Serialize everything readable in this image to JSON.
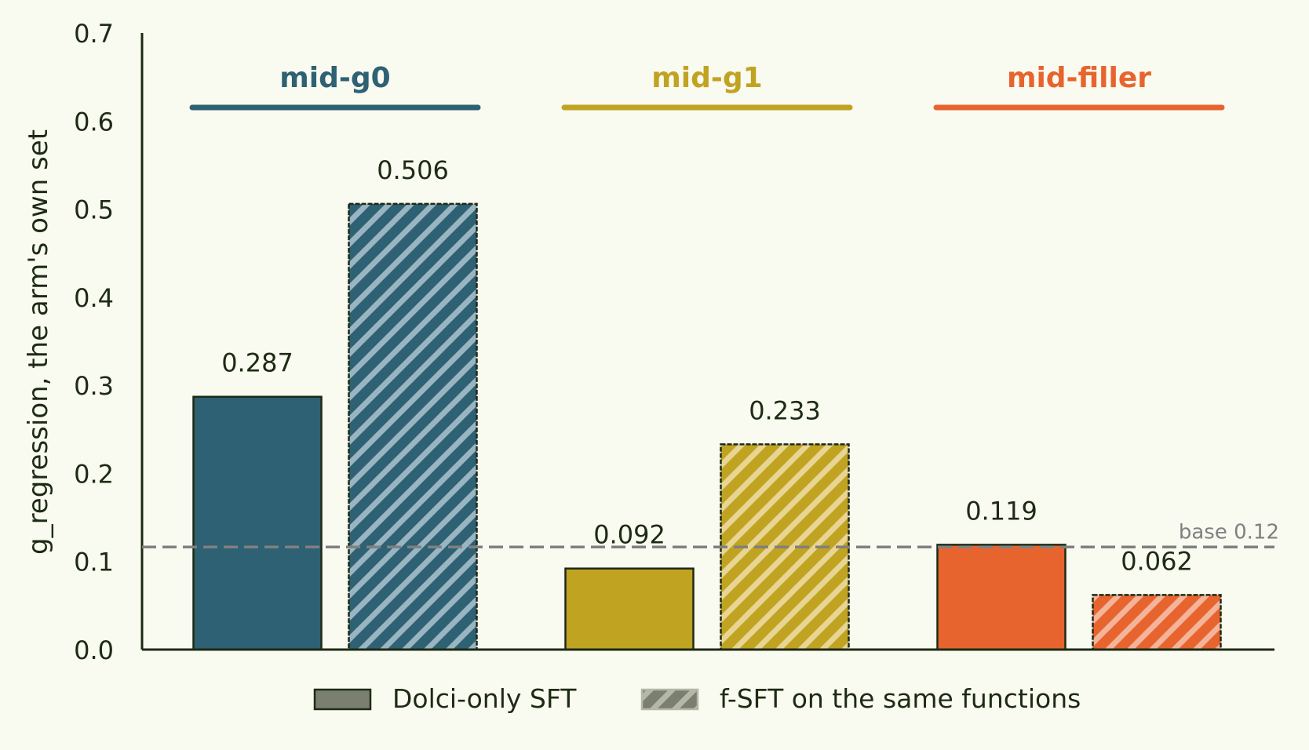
{
  "chart_data": {
    "type": "bar",
    "ylabel": "g_regression, the arm's own set",
    "ylim": [
      0,
      0.7
    ],
    "yticks": [
      "0.0",
      "0.1",
      "0.2",
      "0.3",
      "0.4",
      "0.5",
      "0.6",
      "0.7"
    ],
    "groups": [
      {
        "name": "mid-g0",
        "color": "#2e6173",
        "hatch_color": "#9ab5c2"
      },
      {
        "name": "mid-g1",
        "color": "#c1a322",
        "hatch_color": "#e8d594"
      },
      {
        "name": "mid-filler",
        "color": "#e8642e",
        "hatch_color": "#f4b49a"
      }
    ],
    "series": [
      {
        "name": "Dolci-only SFT",
        "values": [
          0.287,
          0.092,
          0.119
        ],
        "labels": [
          "0.287",
          "0.092",
          "0.119"
        ],
        "hatched": false
      },
      {
        "name": "f-SFT on the same functions",
        "values": [
          0.506,
          0.233,
          0.062
        ],
        "labels": [
          "0.506",
          "0.233",
          "0.062"
        ],
        "hatched": true
      }
    ],
    "reference_line": {
      "value": 0.12,
      "label": "base 0.12",
      "color": "#808080"
    },
    "legend": {
      "position": "bottom-center",
      "solid_color": "#7a7f70",
      "hatch_color": "#7a7f70"
    },
    "grid": false
  }
}
